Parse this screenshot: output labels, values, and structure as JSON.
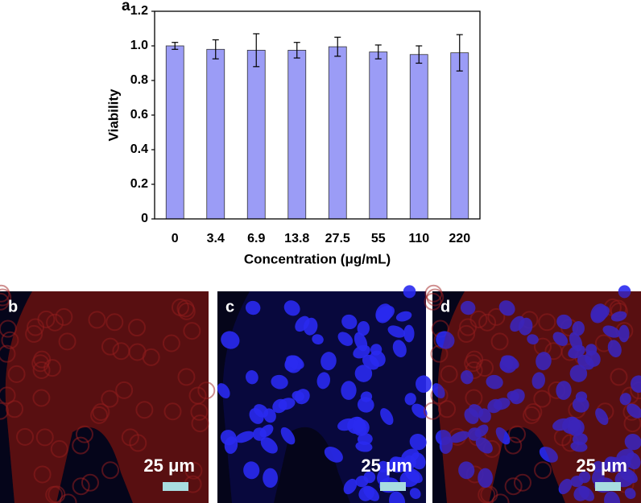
{
  "chart_data": {
    "type": "bar",
    "panel_label": "a",
    "xlabel": "Concentration (μg/mL)",
    "ylabel": "Viability",
    "categories": [
      "0",
      "3.4",
      "6.9",
      "13.8",
      "27.5",
      "55",
      "110",
      "220"
    ],
    "values": [
      1.0,
      0.98,
      0.975,
      0.975,
      0.995,
      0.965,
      0.95,
      0.96
    ],
    "errors": [
      0.02,
      0.055,
      0.095,
      0.045,
      0.055,
      0.04,
      0.05,
      0.105
    ],
    "color": "#9b9cf6",
    "ylim": [
      0,
      1.2
    ],
    "yticks": [
      0,
      0.2,
      0.4,
      0.6,
      0.8,
      {
        "value": 1,
        "label": "1.0"
      },
      1.2
    ]
  },
  "panels": [
    {
      "label": "b",
      "scale": "25 μm"
    },
    {
      "label": "c",
      "scale": "25 μm"
    },
    {
      "label": "d",
      "scale": "25 μm"
    }
  ]
}
